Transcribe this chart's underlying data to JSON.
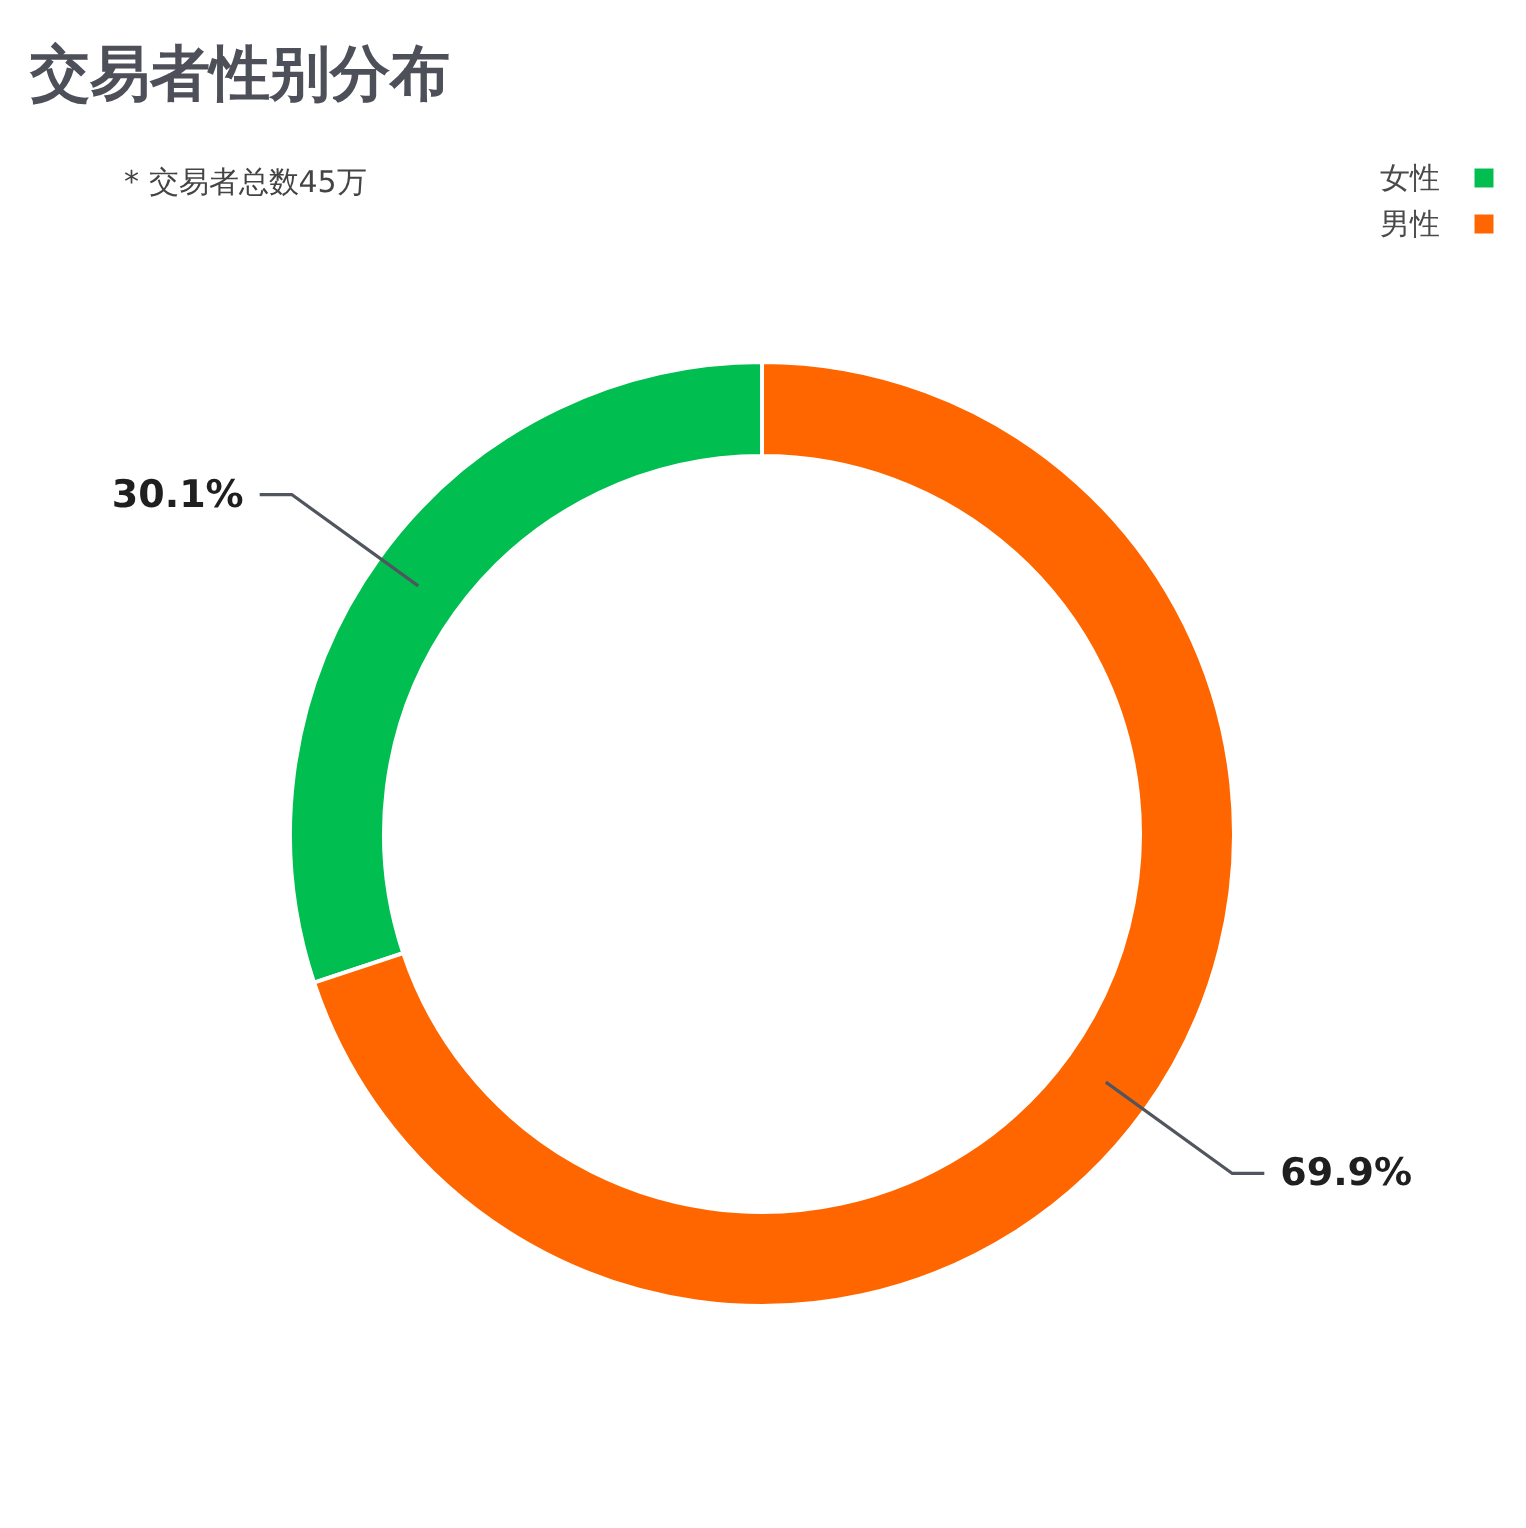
{
  "chart_data": {
    "type": "donut",
    "title": "交易者性别分布",
    "subtitle": "* 交易者总数45万",
    "categories": [
      "女性",
      "男性"
    ],
    "values": [
      30.1,
      69.9
    ],
    "colors": [
      "#00bf50",
      "#ff6600"
    ],
    "value_labels": [
      "30.1%",
      "69.9%"
    ],
    "legend": "top right"
  }
}
